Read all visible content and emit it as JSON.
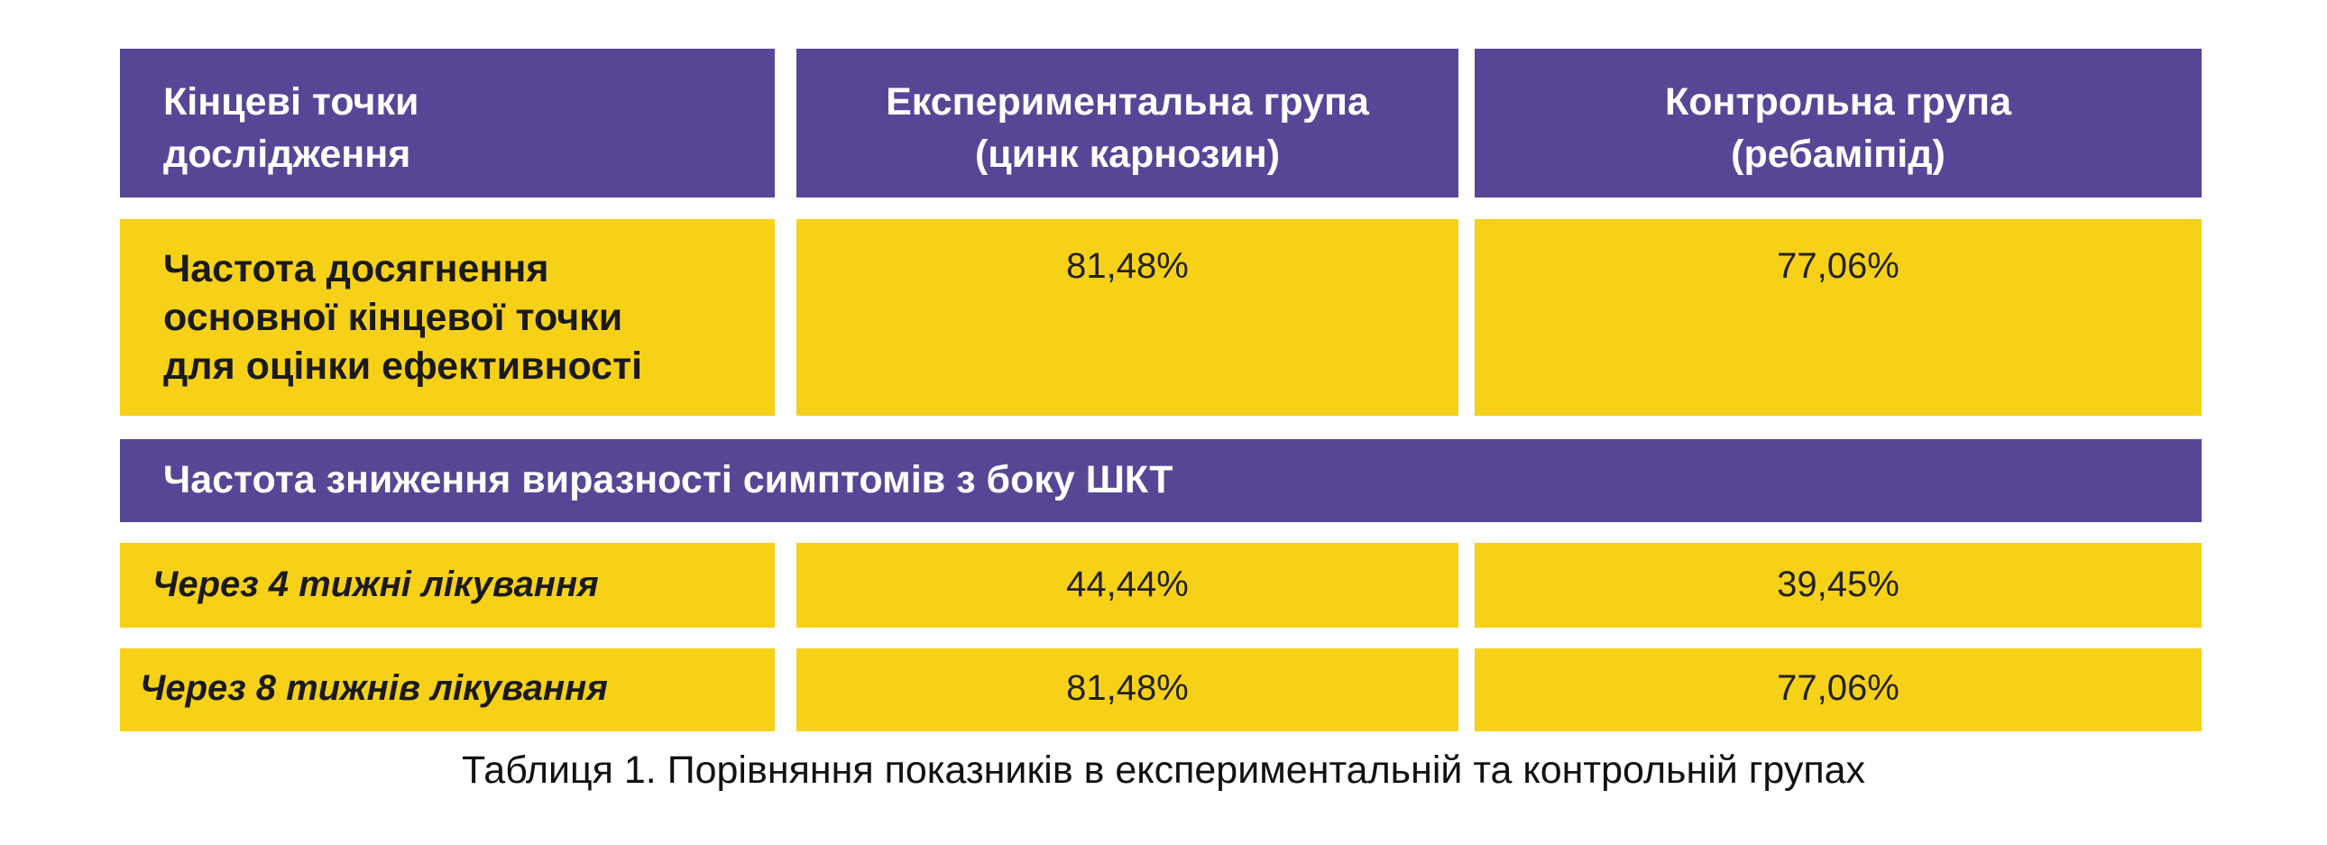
{
  "colors": {
    "header_bg": "#574696",
    "cell_bg": "#f7d117"
  },
  "table": {
    "headers": [
      "Кінцеві точки\nдослідження",
      "Експериментальна група\n(цинк карнозин)",
      "Контрольна група\n(ребаміпід)"
    ],
    "header_lines": {
      "h1": [
        "Кінцеві точки",
        "дослідження"
      ],
      "h2": [
        "Експериментальна група",
        "(цинк карнозин)"
      ],
      "h3": [
        "Контрольна група",
        "(ребаміпід)"
      ]
    },
    "row1": {
      "label_lines": [
        "Частота досягнення",
        "основної кінцевої точки",
        "для оцінки ефективності"
      ],
      "experimental": "81,48%",
      "control": "77,06%"
    },
    "section_title": "Частота зниження виразності симптомів з боку ШКТ",
    "row_4wk": {
      "label": "Через 4 тижні лікування",
      "experimental": "44,44%",
      "control": "39,45%"
    },
    "row_8wk": {
      "label": "Через 8 тижнів лікування",
      "experimental": "81,48%",
      "control": "77,06%"
    }
  },
  "caption": "Таблиця 1. Порівняння показників в експериментальній та контрольній групах"
}
